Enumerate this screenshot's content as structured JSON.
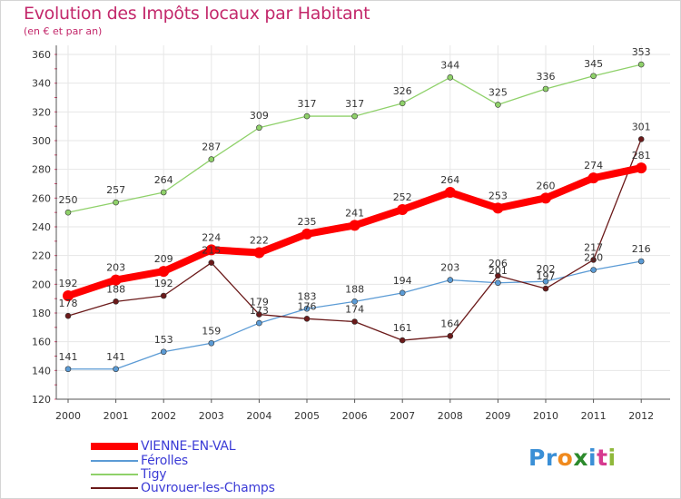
{
  "header": {
    "title": "Evolution des Impôts locaux par Habitant",
    "subtitle": "(en € et par an)"
  },
  "chart_data": {
    "type": "line",
    "x": [
      "2000",
      "2001",
      "2002",
      "2003",
      "2004",
      "2005",
      "2006",
      "2007",
      "2008",
      "2009",
      "2010",
      "2011",
      "2012"
    ],
    "ylim": [
      120,
      360
    ],
    "yticks": [
      120,
      140,
      160,
      180,
      200,
      220,
      240,
      260,
      280,
      300,
      320,
      340,
      360
    ],
    "grid": true,
    "legend_position": "bottom-left",
    "series": [
      {
        "name": "VIENNE-EN-VAL",
        "color": "#ff0000",
        "values": [
          192,
          203,
          209,
          224,
          222,
          235,
          241,
          252,
          264,
          253,
          260,
          274,
          281
        ]
      },
      {
        "name": "Férolles",
        "color": "#5b9bd5",
        "values": [
          141,
          141,
          153,
          159,
          173,
          183,
          188,
          194,
          203,
          201,
          202,
          210,
          216
        ]
      },
      {
        "name": "Tigy",
        "color": "#8fd16a",
        "values": [
          250,
          257,
          264,
          287,
          309,
          317,
          317,
          326,
          344,
          325,
          336,
          345,
          353
        ]
      },
      {
        "name": "Ouvrouer-les-Champs",
        "color": "#6b1a1a",
        "values": [
          178,
          188,
          192,
          215,
          179,
          176,
          174,
          161,
          164,
          206,
          197,
          217,
          301
        ]
      }
    ],
    "point_labels": [
      [
        "192",
        "203",
        "209",
        "224",
        "222",
        "235",
        "241",
        "252",
        "264",
        "253",
        "260",
        "274",
        "281"
      ],
      [
        "141",
        "141",
        "153",
        "159",
        "173",
        "183",
        "188",
        "194",
        "203",
        "201",
        "202",
        "210",
        "216"
      ],
      [
        "250",
        "257",
        "264",
        "287",
        "309",
        "317",
        "317",
        "326",
        "344",
        "325",
        "336",
        "345",
        "353"
      ],
      [
        "178",
        "188",
        "192",
        "215",
        "179",
        "176",
        "174",
        "161",
        "164",
        "206",
        "197",
        "217",
        "301"
      ]
    ]
  },
  "logo": {
    "text_parts": [
      "Pr",
      "o",
      "x",
      "i",
      "t",
      "i"
    ],
    "colors": [
      "#3a8fd6",
      "#f08a1e",
      "#2c8a2c",
      "#3a8fd6",
      "#d63a8f",
      "#8fb83a"
    ]
  }
}
